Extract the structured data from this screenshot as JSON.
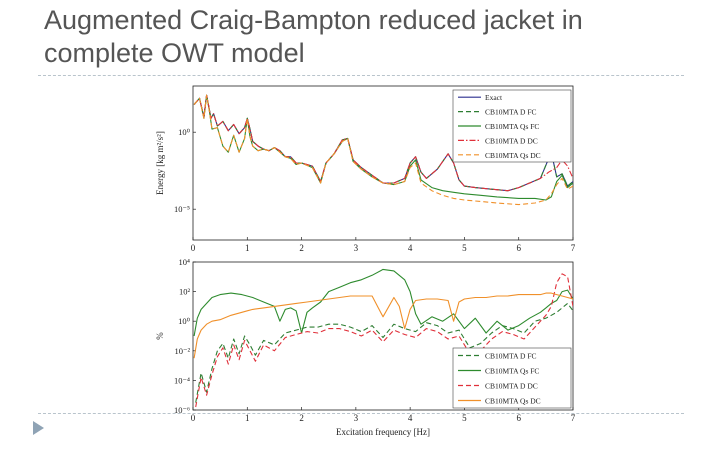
{
  "slide": {
    "title_line1": "Augmented Craig-Bampton reduced jacket in",
    "title_line2": "complete OWT model"
  },
  "colors": {
    "exact": "#2b2f8f",
    "d_fc": "#2e7d32",
    "qs_fc": "#2e8b2e",
    "d_dc": "#e0303a",
    "qs_dc": "#f0902a",
    "rule": "#b9c4cc",
    "bullet": "#8fa3b5"
  },
  "chart_data": [
    {
      "type": "line",
      "ylabel": "Energy [kg m²/s²]",
      "xlabel": "",
      "xlim": [
        0,
        7
      ],
      "ylog": true,
      "ylim_exp": [
        -7,
        3
      ],
      "x_ticks": [
        "0",
        "1",
        "2",
        "3",
        "4",
        "5",
        "6",
        "7"
      ],
      "y_ticks": [
        {
          "label": "10⁰",
          "exp": 0
        },
        {
          "label": "10⁻⁵",
          "exp": -5
        }
      ],
      "legend_position": "top-right",
      "series": [
        {
          "name": "Exact",
          "style": "solid",
          "color_key": "exact",
          "x": [
            0.02,
            0.12,
            0.2,
            0.25,
            0.3,
            0.33,
            0.38,
            0.45,
            0.55,
            0.65,
            0.75,
            0.85,
            0.95,
            1.0,
            1.05,
            1.1,
            1.2,
            1.3,
            1.4,
            1.5,
            1.6,
            1.7,
            1.8,
            1.9,
            2.0,
            2.2,
            2.35,
            2.45,
            2.6,
            2.75,
            2.85,
            2.95,
            3.1,
            3.3,
            3.5,
            3.7,
            3.9,
            4.0,
            4.1,
            4.2,
            4.3,
            4.5,
            4.7,
            4.8,
            4.9,
            5.0,
            5.2,
            5.5,
            5.8,
            6.0,
            6.2,
            6.4,
            6.6,
            6.7,
            6.8,
            6.9,
            7.0
          ],
          "y": [
            1.8,
            2.2,
            1.0,
            2.4,
            1.5,
            0.9,
            1.2,
            0.4,
            0.7,
            0.1,
            0.5,
            -0.1,
            0.3,
            0.9,
            0.2,
            -0.6,
            -0.9,
            -1.1,
            -1.2,
            -1.0,
            -1.2,
            -1.6,
            -1.6,
            -2.0,
            -2.0,
            -2.2,
            -3.2,
            -2.0,
            -1.4,
            -0.5,
            -0.4,
            -1.8,
            -2.3,
            -2.8,
            -3.3,
            -3.3,
            -3.0,
            -2.0,
            -1.6,
            -2.6,
            -3.0,
            -2.4,
            -1.4,
            -2.0,
            -3.1,
            -3.5,
            -3.6,
            -3.7,
            -3.8,
            -3.6,
            -3.3,
            -3.0,
            -1.3,
            -2.9,
            -2.7,
            -3.5,
            -3.2
          ]
        },
        {
          "name": "CB10MTA D FC",
          "style": "dashed",
          "color_key": "d_fc",
          "x": [
            0.02,
            0.12,
            0.2,
            0.25,
            0.3,
            0.33,
            0.38,
            0.45,
            0.55,
            0.65,
            0.75,
            0.85,
            0.95,
            1.0,
            1.05,
            1.1,
            1.2,
            1.3,
            1.4,
            1.5,
            1.6,
            1.7,
            1.8,
            1.9,
            2.0,
            2.2,
            2.35,
            2.45,
            2.6,
            2.75,
            2.85,
            2.95,
            3.1,
            3.3,
            3.5,
            3.7,
            3.9,
            4.0,
            4.1,
            4.2,
            4.3,
            4.5,
            4.7,
            4.8,
            4.9,
            5.0,
            5.2,
            5.5,
            5.8,
            6.0,
            6.2,
            6.4,
            6.6,
            6.7,
            6.8,
            6.9,
            7.0
          ],
          "y": [
            1.8,
            2.2,
            1.0,
            2.4,
            1.5,
            0.9,
            1.2,
            0.4,
            0.7,
            0.1,
            0.5,
            -0.1,
            0.3,
            0.9,
            0.2,
            -0.6,
            -0.9,
            -1.1,
            -1.2,
            -1.0,
            -1.2,
            -1.6,
            -1.6,
            -2.0,
            -2.0,
            -2.2,
            -3.2,
            -2.0,
            -1.4,
            -0.5,
            -0.4,
            -1.8,
            -2.3,
            -2.8,
            -3.3,
            -3.3,
            -3.0,
            -2.0,
            -1.6,
            -2.6,
            -3.0,
            -2.4,
            -1.4,
            -2.0,
            -3.1,
            -3.5,
            -3.6,
            -3.7,
            -3.8,
            -3.6,
            -3.3,
            -3.0,
            -1.3,
            -2.9,
            -2.7,
            -3.5,
            -3.2
          ]
        },
        {
          "name": "CB10MTA Qs FC",
          "style": "solid",
          "color_key": "qs_fc",
          "x": [
            0.02,
            0.12,
            0.2,
            0.25,
            0.3,
            0.35,
            0.45,
            0.55,
            0.65,
            0.75,
            0.85,
            0.95,
            1.0,
            1.05,
            1.1,
            1.2,
            1.3,
            1.4,
            1.5,
            1.6,
            1.7,
            1.8,
            1.9,
            2.0,
            2.2,
            2.35,
            2.45,
            2.6,
            2.75,
            2.85,
            2.95,
            3.1,
            3.3,
            3.5,
            3.7,
            3.9,
            4.0,
            4.1,
            4.2,
            4.4,
            4.6,
            4.8,
            5.0,
            5.3,
            5.6,
            6.0,
            6.3,
            6.5,
            6.6,
            6.7,
            6.8,
            6.9,
            7.0
          ],
          "y": [
            1.8,
            2.2,
            0.9,
            2.4,
            1.4,
            0.2,
            0.3,
            -0.9,
            -1.3,
            -0.2,
            -1.3,
            -0.4,
            0.9,
            -0.3,
            -0.9,
            -1.2,
            -1.1,
            -1.2,
            -1.0,
            -1.3,
            -1.6,
            -1.7,
            -2.1,
            -2.0,
            -2.3,
            -3.3,
            -2.0,
            -1.4,
            -0.6,
            -0.4,
            -1.9,
            -2.4,
            -2.9,
            -3.3,
            -3.4,
            -3.2,
            -2.2,
            -1.8,
            -3.1,
            -3.6,
            -3.8,
            -3.9,
            -4.0,
            -4.1,
            -4.2,
            -4.3,
            -4.3,
            -4.4,
            -4.2,
            -3.2,
            -2.8,
            -3.6,
            -3.3
          ]
        },
        {
          "name": "CB10MTA D DC",
          "style": "dashdot",
          "color_key": "d_dc",
          "x": [
            0.02,
            0.12,
            0.2,
            0.25,
            0.3,
            0.33,
            0.38,
            0.45,
            0.55,
            0.65,
            0.75,
            0.85,
            0.95,
            1.0,
            1.05,
            1.1,
            1.2,
            1.3,
            1.4,
            1.5,
            1.6,
            1.7,
            1.8,
            1.9,
            2.0,
            2.2,
            2.35,
            2.45,
            2.6,
            2.75,
            2.85,
            2.95,
            3.1,
            3.3,
            3.5,
            3.7,
            3.9,
            4.0,
            4.1,
            4.2,
            4.3,
            4.5,
            4.7,
            4.8,
            4.9,
            5.0,
            5.2,
            5.5,
            5.8,
            6.0,
            6.2,
            6.4,
            6.55,
            6.7,
            6.8,
            6.9,
            7.0
          ],
          "y": [
            1.8,
            2.2,
            1.0,
            2.4,
            1.5,
            0.9,
            1.2,
            0.4,
            0.7,
            0.1,
            0.5,
            -0.1,
            0.3,
            0.9,
            0.2,
            -0.6,
            -0.9,
            -1.1,
            -1.2,
            -1.0,
            -1.2,
            -1.6,
            -1.6,
            -2.0,
            -2.0,
            -2.2,
            -3.2,
            -2.0,
            -1.4,
            -0.5,
            -0.4,
            -1.8,
            -2.3,
            -2.8,
            -3.3,
            -3.3,
            -3.0,
            -2.0,
            -1.6,
            -2.6,
            -3.0,
            -2.4,
            -1.4,
            -2.0,
            -3.1,
            -3.5,
            -3.6,
            -3.7,
            -3.8,
            -3.6,
            -3.3,
            -3.0,
            -2.6,
            -2.3,
            -1.8,
            -2.2,
            -3.0
          ]
        },
        {
          "name": "CB10MTA Qs DC",
          "style": "dashed",
          "color_key": "qs_dc",
          "x": [
            0.02,
            0.12,
            0.2,
            0.25,
            0.3,
            0.35,
            0.45,
            0.55,
            0.65,
            0.75,
            0.85,
            0.95,
            1.0,
            1.05,
            1.1,
            1.2,
            1.3,
            1.4,
            1.5,
            1.6,
            1.7,
            1.8,
            1.9,
            2.0,
            2.2,
            2.35,
            2.45,
            2.6,
            2.75,
            2.85,
            2.95,
            3.1,
            3.3,
            3.5,
            3.7,
            3.9,
            4.0,
            4.1,
            4.2,
            4.4,
            4.6,
            4.8,
            5.0,
            5.3,
            5.6,
            6.0,
            6.3,
            6.5,
            6.6,
            6.7,
            6.8,
            6.9,
            7.0
          ],
          "y": [
            1.8,
            2.2,
            0.9,
            2.4,
            1.4,
            0.2,
            0.3,
            -0.9,
            -1.3,
            -0.2,
            -1.3,
            -0.4,
            0.9,
            -0.3,
            -0.9,
            -1.2,
            -1.1,
            -1.2,
            -1.0,
            -1.3,
            -1.6,
            -1.7,
            -2.1,
            -2.0,
            -2.3,
            -3.3,
            -2.0,
            -1.4,
            -0.6,
            -0.4,
            -1.9,
            -2.4,
            -2.9,
            -3.3,
            -3.4,
            -3.2,
            -2.3,
            -2.0,
            -3.3,
            -3.8,
            -4.1,
            -4.3,
            -4.4,
            -4.5,
            -4.6,
            -4.7,
            -4.6,
            -4.4,
            -4.0,
            -3.4,
            -3.0,
            -3.7,
            -3.5
          ]
        }
      ]
    },
    {
      "type": "line",
      "ylabel": "%",
      "xlabel": "Excitation frequency [Hz]",
      "xlim": [
        0,
        7
      ],
      "ylog": true,
      "ylim_exp": [
        -6,
        4
      ],
      "x_ticks": [
        "0",
        "1",
        "2",
        "3",
        "4",
        "5",
        "6",
        "7"
      ],
      "y_ticks": [
        {
          "label": "10⁴",
          "exp": 4
        },
        {
          "label": "10²",
          "exp": 2
        },
        {
          "label": "10⁰",
          "exp": 0
        },
        {
          "label": "10⁻²",
          "exp": -2
        },
        {
          "label": "10⁻⁴",
          "exp": -4
        },
        {
          "label": "10⁻⁶",
          "exp": -6
        }
      ],
      "legend_position": "bottom-right",
      "series": [
        {
          "name": "CB10MTA D FC",
          "style": "dashed",
          "color_key": "d_fc",
          "x": [
            0.05,
            0.15,
            0.25,
            0.35,
            0.45,
            0.55,
            0.65,
            0.75,
            0.85,
            0.95,
            1.05,
            1.15,
            1.3,
            1.5,
            1.7,
            1.9,
            2.1,
            2.3,
            2.5,
            2.7,
            2.9,
            3.1,
            3.3,
            3.5,
            3.7,
            3.9,
            4.1,
            4.3,
            4.5,
            4.7,
            4.9,
            5.1,
            5.3,
            5.5,
            5.7,
            5.9,
            6.1,
            6.3,
            6.5,
            6.6,
            6.7,
            6.8,
            6.9,
            7.0
          ],
          "y": [
            -5.5,
            -3.5,
            -4.8,
            -3.2,
            -2.0,
            -1.5,
            -2.5,
            -1.2,
            -2.2,
            -1.0,
            -1.6,
            -2.3,
            -1.3,
            -1.6,
            -0.8,
            -0.6,
            -0.4,
            -0.4,
            -0.2,
            -0.2,
            -0.4,
            -0.7,
            -0.3,
            -1.1,
            -0.2,
            -0.5,
            -0.7,
            -0.1,
            -0.3,
            -0.8,
            -0.6,
            -1.8,
            -1.5,
            -0.8,
            -0.3,
            -0.5,
            -0.8,
            0.0,
            0.2,
            0.4,
            0.6,
            0.9,
            1.2,
            0.7
          ]
        },
        {
          "name": "CB10MTA Qs FC",
          "style": "solid",
          "color_key": "qs_fc",
          "x": [
            0.02,
            0.08,
            0.15,
            0.25,
            0.35,
            0.5,
            0.7,
            0.9,
            1.1,
            1.3,
            1.5,
            1.6,
            1.7,
            1.8,
            1.9,
            2.0,
            2.1,
            2.2,
            2.35,
            2.5,
            2.7,
            2.9,
            3.1,
            3.3,
            3.5,
            3.7,
            3.9,
            4.0,
            4.1,
            4.2,
            4.4,
            4.6,
            4.8,
            5.0,
            5.2,
            5.4,
            5.6,
            5.8,
            6.0,
            6.2,
            6.4,
            6.5,
            6.6,
            6.7,
            6.8,
            6.9,
            7.0
          ],
          "y": [
            -1.0,
            0.2,
            0.8,
            1.2,
            1.6,
            1.8,
            1.9,
            1.8,
            1.6,
            1.3,
            1.0,
            0.0,
            0.8,
            0.9,
            0.7,
            -0.8,
            0.6,
            0.9,
            1.3,
            2.0,
            2.3,
            2.6,
            2.8,
            3.1,
            3.5,
            3.4,
            2.8,
            2.0,
            0.5,
            -0.2,
            0.3,
            0.0,
            0.5,
            -0.5,
            0.2,
            -0.8,
            0.0,
            -0.6,
            -0.3,
            0.2,
            0.6,
            0.9,
            1.2,
            1.4,
            2.0,
            2.1,
            1.5
          ]
        },
        {
          "name": "CB10MTA D DC",
          "style": "dashed",
          "color_key": "d_dc",
          "x": [
            0.05,
            0.15,
            0.25,
            0.35,
            0.45,
            0.55,
            0.65,
            0.75,
            0.85,
            0.95,
            1.05,
            1.15,
            1.3,
            1.5,
            1.7,
            1.9,
            2.1,
            2.3,
            2.5,
            2.7,
            2.9,
            3.1,
            3.3,
            3.5,
            3.7,
            3.9,
            4.1,
            4.3,
            4.5,
            4.7,
            4.9,
            5.1,
            5.3,
            5.5,
            5.7,
            5.9,
            6.1,
            6.3,
            6.5,
            6.6,
            6.7,
            6.8,
            6.9,
            7.0
          ],
          "y": [
            -5.8,
            -3.8,
            -5.0,
            -3.6,
            -2.4,
            -1.8,
            -2.9,
            -1.6,
            -2.6,
            -1.3,
            -2.0,
            -2.7,
            -1.6,
            -2.0,
            -1.1,
            -0.9,
            -0.7,
            -0.8,
            -0.5,
            -0.5,
            -0.7,
            -1.0,
            -0.6,
            -1.4,
            -0.6,
            -0.9,
            -1.1,
            -0.5,
            -0.7,
            -1.2,
            -1.0,
            -2.2,
            -2.0,
            -1.2,
            -0.7,
            -0.9,
            -1.2,
            -0.4,
            0.4,
            1.0,
            2.6,
            3.2,
            3.0,
            1.0
          ]
        },
        {
          "name": "CB10MTA Qs DC",
          "style": "solid",
          "color_key": "qs_dc",
          "x": [
            0.02,
            0.08,
            0.15,
            0.25,
            0.35,
            0.5,
            0.7,
            0.9,
            1.0,
            1.1,
            1.3,
            1.5,
            1.7,
            1.9,
            2.1,
            2.3,
            2.5,
            2.7,
            2.9,
            3.1,
            3.3,
            3.5,
            3.7,
            3.8,
            3.9,
            4.0,
            4.1,
            4.3,
            4.5,
            4.7,
            4.8,
            4.9,
            5.0,
            5.2,
            5.4,
            5.6,
            5.8,
            6.0,
            6.2,
            6.4,
            6.5,
            6.6,
            6.7,
            6.8,
            6.9,
            7.0
          ],
          "y": [
            -2.5,
            -1.2,
            -0.6,
            -0.2,
            0.0,
            0.1,
            0.4,
            0.6,
            0.7,
            0.8,
            0.9,
            1.0,
            1.1,
            1.2,
            1.3,
            1.4,
            1.5,
            1.6,
            1.7,
            1.7,
            1.7,
            0.3,
            1.6,
            1.0,
            -0.5,
            0.8,
            1.4,
            1.5,
            1.5,
            1.4,
            0.0,
            1.3,
            1.5,
            1.6,
            1.6,
            1.7,
            1.7,
            1.8,
            1.8,
            1.8,
            1.9,
            1.9,
            1.8,
            1.7,
            1.6,
            1.5
          ]
        }
      ]
    }
  ]
}
